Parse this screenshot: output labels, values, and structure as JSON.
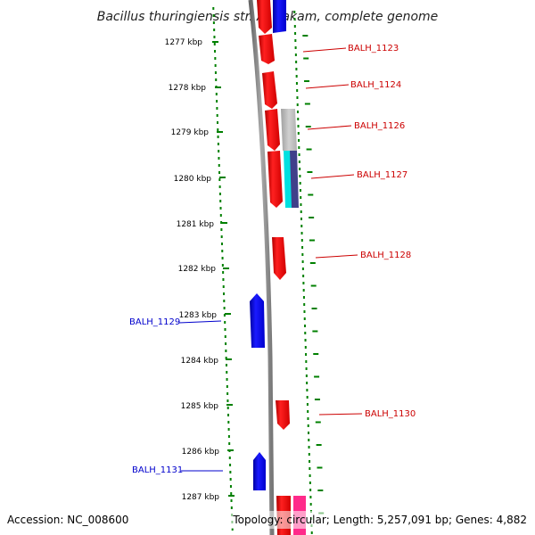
{
  "title": "Bacillus thuringiensis str. Al Hakam, complete genome",
  "footer": {
    "accession": "Accession: NC_008600",
    "topology": "Topology: circular; Length: 5,257,091 bp; Genes: 4,882"
  },
  "colors": {
    "forward_gene": "#ff0000",
    "reverse_gene": "#0000ff",
    "forward_label": "#cc0000",
    "reverse_label": "#0000cc",
    "tick": "#008000",
    "backbone": "#808080",
    "grey_feature": "#bbbbbb",
    "cyan_feature": "#00e5e5",
    "navy_feature": "#3a3a8a",
    "pink_feature": "#ff2a8a"
  },
  "kbp_ticks": [
    {
      "pos_kbp": 1277,
      "label": "1277 kbp"
    },
    {
      "pos_kbp": 1278,
      "label": "1278 kbp"
    },
    {
      "pos_kbp": 1279,
      "label": "1279 kbp"
    },
    {
      "pos_kbp": 1280,
      "label": "1280 kbp"
    },
    {
      "pos_kbp": 1281,
      "label": "1281 kbp"
    },
    {
      "pos_kbp": 1282,
      "label": "1282 kbp"
    },
    {
      "pos_kbp": 1283,
      "label": "1283 kbp"
    },
    {
      "pos_kbp": 1284,
      "label": "1284 kbp"
    },
    {
      "pos_kbp": 1285,
      "label": "1285 kbp"
    },
    {
      "pos_kbp": 1286,
      "label": "1286 kbp"
    },
    {
      "pos_kbp": 1287,
      "label": "1287 kbp"
    }
  ],
  "genes": [
    {
      "label": "BALH_1123",
      "strand": "forward"
    },
    {
      "label": "BALH_1124",
      "strand": "forward"
    },
    {
      "label": "BALH_1126",
      "strand": "forward"
    },
    {
      "label": "BALH_1127",
      "strand": "forward"
    },
    {
      "label": "BALH_1128",
      "strand": "forward"
    },
    {
      "label": "BALH_1129",
      "strand": "reverse"
    },
    {
      "label": "BALH_1130",
      "strand": "forward"
    },
    {
      "label": "BALH_1131",
      "strand": "reverse"
    }
  ]
}
